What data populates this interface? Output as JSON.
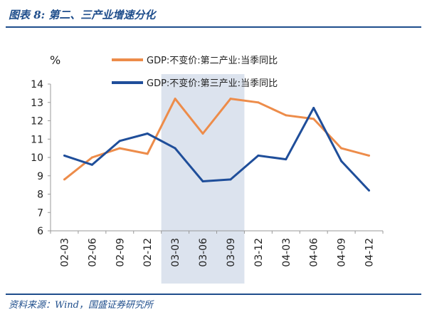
{
  "header": {
    "title": "图表 8: 第二、三产业增速分化"
  },
  "footer": {
    "source": "资料来源：Wind，国盛证券研究所"
  },
  "colors": {
    "brand": "#1f4e8c",
    "series_orange": "#ED8C4A",
    "series_blue": "#1F4E9A",
    "shade": "#DCE3EE"
  },
  "chart_data": {
    "type": "line",
    "ylabel": "%",
    "ylim": [
      6,
      14
    ],
    "yticks": [
      6,
      7,
      8,
      9,
      10,
      11,
      12,
      13,
      14
    ],
    "categories": [
      "02-03",
      "02-06",
      "02-09",
      "02-12",
      "03-03",
      "03-06",
      "03-09",
      "03-12",
      "04-03",
      "04-06",
      "04-09",
      "04-12"
    ],
    "shaded_range": [
      "03-03",
      "03-09"
    ],
    "grid": false,
    "legend_position": "top",
    "series": [
      {
        "name": "GDP:不变价:第二产业:当季同比",
        "color": "#ED8C4A",
        "values": [
          8.8,
          10.0,
          10.5,
          10.2,
          13.2,
          11.3,
          13.2,
          13.0,
          12.3,
          12.1,
          10.5,
          10.1
        ]
      },
      {
        "name": "GDP:不变价:第三产业:当季同比",
        "color": "#1F4E9A",
        "values": [
          10.1,
          9.6,
          10.9,
          11.3,
          10.5,
          8.7,
          8.8,
          10.1,
          9.9,
          12.7,
          9.8,
          8.2
        ]
      }
    ]
  }
}
